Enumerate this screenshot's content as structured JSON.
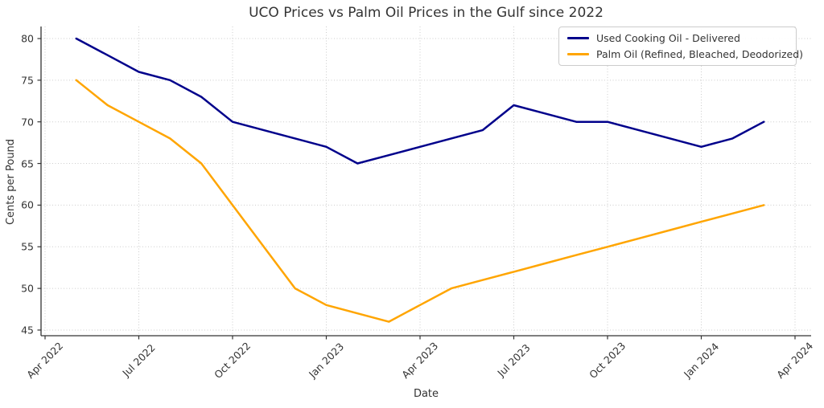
{
  "colors": {
    "background": "#ffffff",
    "text": "#333333",
    "grid": "#cccccc",
    "spine": "#333333",
    "uco_line": "#00008B",
    "palm_line": "#FFA500"
  },
  "chart_data": {
    "type": "line",
    "title": "UCO Prices vs Palm Oil Prices in the Gulf since 2022",
    "xlabel": "Date",
    "ylabel": "Cents per Pound",
    "grid": true,
    "legend_position": "upper right",
    "x": [
      "May 2022",
      "Jun 2022",
      "Jul 2022",
      "Aug 2022",
      "Sep 2022",
      "Oct 2022",
      "Nov 2022",
      "Dec 2022",
      "Jan 2023",
      "Feb 2023",
      "Mar 2023",
      "Apr 2023",
      "May 2023",
      "Jun 2023",
      "Jul 2023",
      "Aug 2023",
      "Sep 2023",
      "Oct 2023",
      "Nov 2023",
      "Dec 2023",
      "Jan 2024",
      "Feb 2024",
      "Mar 2024"
    ],
    "series": [
      {
        "name": "Used Cooking Oil - Delivered",
        "color": "#00008B",
        "values": [
          80,
          78,
          76,
          75,
          73,
          70,
          69,
          68,
          67,
          65,
          66,
          67,
          68,
          69,
          72,
          71,
          70,
          70,
          69,
          68,
          67,
          68,
          70
        ]
      },
      {
        "name": "Palm Oil (Refined, Bleached, Deodorized)",
        "color": "#FFA500",
        "values": [
          75,
          72,
          70,
          68,
          65,
          60,
          55,
          50,
          48,
          47,
          46,
          48,
          50,
          51,
          52,
          53,
          54,
          55,
          56,
          57,
          58,
          59,
          60
        ]
      }
    ],
    "x_tick_labels": [
      "Apr 2022",
      "Jul 2022",
      "Oct 2022",
      "Jan 2023",
      "Apr 2023",
      "Jul 2023",
      "Oct 2023",
      "Jan 2024",
      "Apr 2024"
    ],
    "x_tick_month_offsets": [
      0,
      3,
      6,
      9,
      12,
      15,
      18,
      21,
      24
    ],
    "y_ticks": [
      45,
      50,
      55,
      60,
      65,
      70,
      75,
      80
    ],
    "ylim": [
      44.2,
      81.5
    ]
  }
}
